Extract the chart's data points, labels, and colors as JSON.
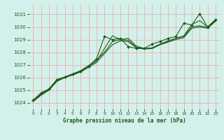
{
  "title": "Graphe pression niveau de la mer (hPa)",
  "background_color": "#d4f0eb",
  "grid_color": "#e8b0b0",
  "line_color": "#1a5c1a",
  "marker_color": "#1a5c1a",
  "xlim": [
    -0.5,
    23.5
  ],
  "ylim": [
    1023.5,
    1031.8
  ],
  "yticks": [
    1024,
    1025,
    1026,
    1027,
    1028,
    1029,
    1030,
    1031
  ],
  "xticks": [
    0,
    1,
    2,
    3,
    4,
    5,
    6,
    7,
    8,
    9,
    10,
    11,
    12,
    13,
    14,
    15,
    16,
    17,
    18,
    19,
    20,
    21,
    22,
    23
  ],
  "series1": {
    "x": [
      0,
      1,
      2,
      3,
      4,
      5,
      6,
      7,
      8,
      9,
      10,
      11,
      12,
      13,
      14,
      15,
      16,
      17,
      18,
      19,
      20,
      21,
      22,
      23
    ],
    "y": [
      1024.2,
      1024.7,
      1025.1,
      1025.8,
      1026.0,
      1026.25,
      1026.5,
      1026.9,
      1027.3,
      1028.3,
      1029.3,
      1029.0,
      1029.1,
      1028.5,
      1028.3,
      1028.3,
      1028.6,
      1028.85,
      1029.1,
      1029.3,
      1030.2,
      1030.5,
      1030.0,
      1030.55
    ]
  },
  "series2": {
    "x": [
      0,
      1,
      2,
      3,
      4,
      5,
      6,
      7,
      8,
      9,
      10,
      11,
      12,
      13,
      14,
      15,
      16,
      17,
      18,
      19,
      20,
      21,
      22,
      23
    ],
    "y": [
      1024.15,
      1024.65,
      1025.05,
      1025.75,
      1026.05,
      1026.3,
      1026.55,
      1026.95,
      1027.4,
      1028.0,
      1028.85,
      1029.0,
      1028.95,
      1028.4,
      1028.3,
      1028.35,
      1028.65,
      1028.9,
      1029.1,
      1029.25,
      1030.0,
      1030.1,
      1029.95,
      1030.5
    ]
  },
  "series3": {
    "x": [
      0,
      1,
      2,
      3,
      4,
      5,
      6,
      7,
      8,
      9,
      10,
      11,
      12,
      13,
      14,
      15,
      16,
      17,
      18,
      19,
      20,
      21,
      22,
      23
    ],
    "y": [
      1024.1,
      1024.6,
      1025.0,
      1025.7,
      1026.0,
      1026.2,
      1026.45,
      1026.8,
      1027.2,
      1027.9,
      1028.6,
      1028.9,
      1028.85,
      1028.35,
      1028.25,
      1028.3,
      1028.6,
      1028.8,
      1029.0,
      1029.15,
      1029.9,
      1030.0,
      1029.9,
      1030.45
    ]
  },
  "series_marker": {
    "x": [
      0,
      1,
      2,
      3,
      4,
      5,
      6,
      7,
      8,
      9,
      10,
      11,
      12,
      13,
      14,
      15,
      16,
      17,
      18,
      19,
      20,
      21,
      22,
      23
    ],
    "y": [
      1024.2,
      1024.8,
      1025.1,
      1025.85,
      1026.05,
      1026.25,
      1026.5,
      1026.9,
      1027.5,
      1029.25,
      1029.0,
      1029.1,
      1028.45,
      1028.3,
      1028.3,
      1028.65,
      1028.85,
      1029.1,
      1029.25,
      1030.3,
      1030.15,
      1031.05,
      1030.0,
      1030.6
    ]
  }
}
